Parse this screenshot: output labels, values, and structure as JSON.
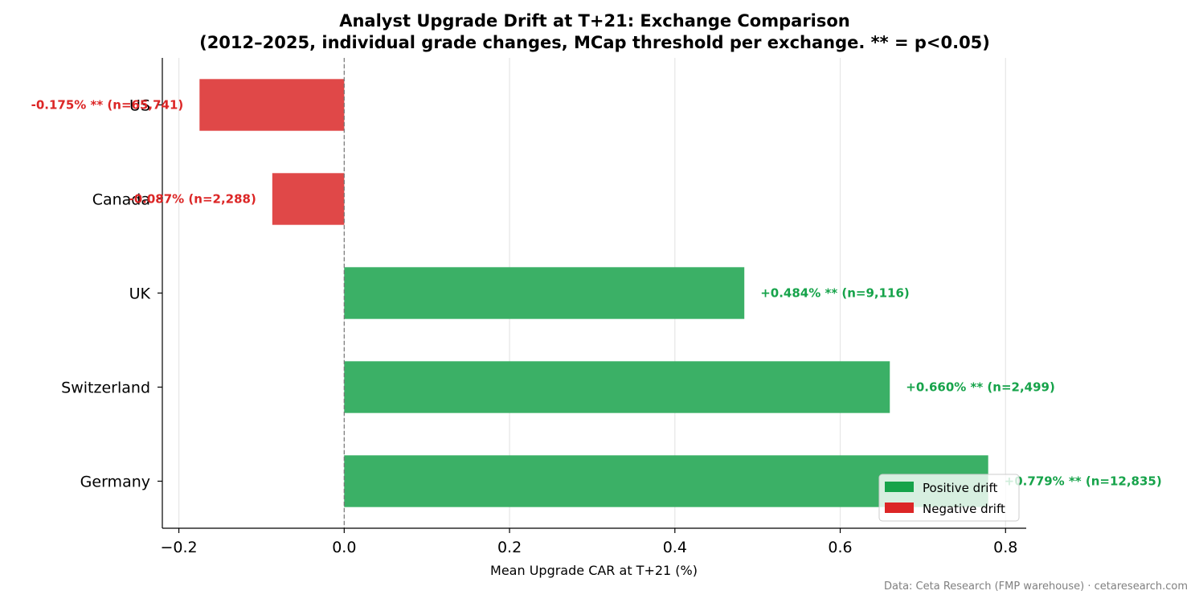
{
  "chart_data": {
    "type": "bar",
    "orientation": "horizontal",
    "title": "Analyst Upgrade Drift at T+21: Exchange Comparison",
    "subtitle": "(2012–2025, individual grade changes, MCap threshold per exchange. ** = p<0.05)",
    "xlabel": "Mean Upgrade CAR at T+21 (%)",
    "ylabel": "",
    "xlim": [
      -0.22,
      0.825
    ],
    "xticks": [
      -0.2,
      0.0,
      0.2,
      0.4,
      0.6,
      0.8
    ],
    "xtick_labels": [
      "−0.2",
      "0.0",
      "0.2",
      "0.4",
      "0.6",
      "0.8"
    ],
    "grid": "x",
    "categories": [
      "US",
      "Canada",
      "UK",
      "Switzerland",
      "Germany"
    ],
    "values": [
      -0.175,
      -0.087,
      0.484,
      0.66,
      0.779
    ],
    "bar_labels": [
      "-0.175% **  (n=65,741)",
      "-0.087%  (n=2,288)",
      "+0.484% **  (n=9,116)",
      "+0.660% **  (n=2,499)",
      "+0.779% **  (n=12,835)"
    ],
    "legend": {
      "placement": "lower-right",
      "entries": [
        {
          "label": "Positive drift",
          "color": "#16a34a"
        },
        {
          "label": "Negative drift",
          "color": "#dc2626"
        }
      ]
    },
    "colors": {
      "positive_bar": "#3bb066",
      "negative_bar": "#e04848",
      "positive_text": "#16a34a",
      "negative_text": "#dc2626"
    }
  },
  "source_note": "Data: Ceta Research (FMP warehouse) · cetaresearch.com"
}
